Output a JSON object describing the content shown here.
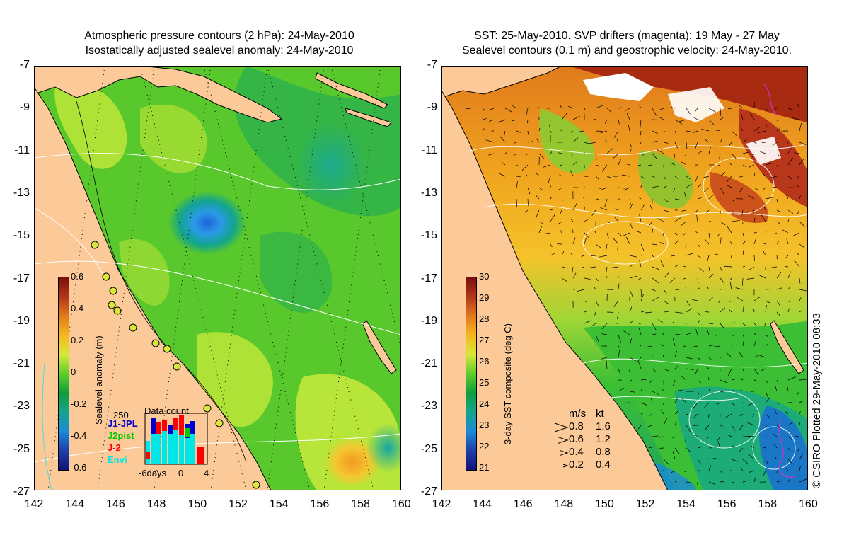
{
  "left_panel": {
    "title_line1": "Atmospheric pressure contours (2 hPa): 24-May-2010",
    "title_line2": "Isostatically adjusted sealevel anomaly: 24-May-2010",
    "colorbar": {
      "label": "Sealevel anomaly (m)",
      "ticks": [
        "0.6",
        "0.4",
        "0.2",
        "0",
        "-0.2",
        "-0.4",
        "-0.6"
      ]
    },
    "data_count": {
      "title": "Data count",
      "max": "250",
      "missions": [
        {
          "name": "J1-JPL",
          "color": "#0000cc"
        },
        {
          "name": "J2pist",
          "color": "#00cc00"
        },
        {
          "name": "J-2",
          "color": "#ff0000"
        },
        {
          "name": "Envi",
          "color": "#00e5e5"
        }
      ],
      "x_ticks": [
        "-6days",
        "0",
        "4"
      ]
    }
  },
  "right_panel": {
    "title_line1": "SST: 25-May-2010. SVP drifters (magenta): 19 May - 27 May",
    "title_line2": "Sealevel contours (0.1 m) and geostrophic velocity: 24-May-2010.",
    "colorbar": {
      "label": "3-day SST composite (deg C)",
      "ticks": [
        "30",
        "29",
        "28",
        "27",
        "26",
        "25",
        "24",
        "23",
        "22",
        "21"
      ]
    },
    "velocity_key": {
      "header_ms": "m/s",
      "header_kt": "kt",
      "rows": [
        {
          "ms": "0.8",
          "kt": "1.6"
        },
        {
          "ms": "0.6",
          "kt": "1.2"
        },
        {
          "ms": "0.4",
          "kt": "0.8"
        },
        {
          "ms": "0.2",
          "kt": "0.4"
        }
      ]
    },
    "credit": "© CSIRO Plotted 29-May-2010 08:33"
  },
  "axes": {
    "y_ticks": [
      "-7",
      "-9",
      "-11",
      "-13",
      "-15",
      "-17",
      "-19",
      "-21",
      "-23",
      "-25",
      "-27"
    ],
    "x_ticks": [
      "142",
      "144",
      "146",
      "148",
      "150",
      "152",
      "154",
      "156",
      "158",
      "160"
    ],
    "lon_range": [
      142,
      160
    ],
    "lat_range": [
      -27,
      -7
    ]
  },
  "colors": {
    "land": "#fcc998",
    "sla_green": "#58c82c",
    "sla_lightgreen": "#bde63a",
    "sla_blue": "#2a8fe0",
    "sst_orange": "#f0a41e",
    "sst_red": "#b22a10"
  }
}
